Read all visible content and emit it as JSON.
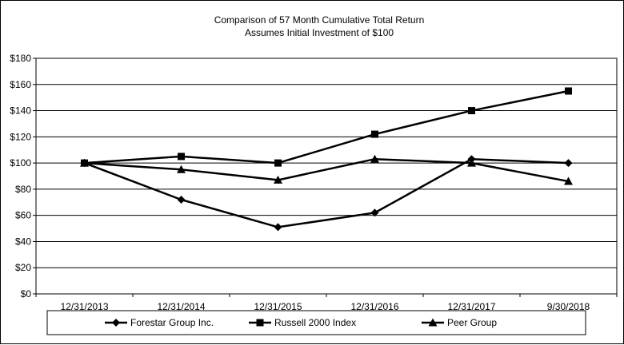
{
  "chart_data": {
    "type": "line",
    "title": "Comparison of 57 Month Cumulative Total Return",
    "subtitle": "Assumes Initial Investment of $100",
    "categories": [
      "12/31/2013",
      "12/31/2014",
      "12/31/2015",
      "12/31/2016",
      "12/31/2017",
      "9/30/2018"
    ],
    "y_ticks": [
      "$0",
      "$20",
      "$40",
      "$60",
      "$80",
      "$100",
      "$120",
      "$140",
      "$160",
      "$180"
    ],
    "ylim": [
      0,
      180
    ],
    "grid": true,
    "legend_placement": "bottom",
    "series": [
      {
        "name": "Forestar Group Inc.",
        "marker": "diamond",
        "color": "#000000",
        "values": [
          100,
          72,
          51,
          62,
          103,
          100
        ]
      },
      {
        "name": "Russell 2000 Index",
        "marker": "square",
        "color": "#000000",
        "values": [
          100,
          105,
          100,
          122,
          140,
          155
        ]
      },
      {
        "name": "Peer Group",
        "marker": "triangle",
        "color": "#000000",
        "values": [
          100,
          95,
          87,
          103,
          100,
          86
        ]
      }
    ]
  }
}
